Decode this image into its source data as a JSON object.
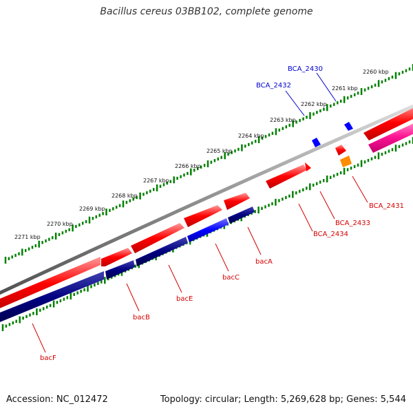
{
  "title": "Bacillus cereus 03BB102, complete genome",
  "footer": {
    "accession": "Accession: NC_012472",
    "summary": "Topology: circular; Length: 5,269,628 bp; Genes: 5,544"
  },
  "scale_labels": [
    "2260 kbp",
    "2261 kbp",
    "2262 kbp",
    "2263 kbp",
    "2264 kbp",
    "2265 kbp",
    "2266 kbp",
    "2267 kbp",
    "2268 kbp",
    "2269 kbp",
    "2270 kbp",
    "2271 kbp"
  ],
  "gene_labels": {
    "BCA_2430": "BCA_2430",
    "BCA_2432": "BCA_2432",
    "BCA_2431": "BCA_2431",
    "BCA_2433": "BCA_2433",
    "BCA_2434": "BCA_2434",
    "bacA": "bacA",
    "bacC": "bacC",
    "bacE": "bacE",
    "bacB": "bacB",
    "bacF": "bacF"
  },
  "colors": {
    "cds_forward": "#ff0000",
    "cds_reverse_dark": "#000080",
    "cds_blue": "#0000ff",
    "cds_pink": "#ff1493",
    "cds_orange": "#ff8c00",
    "backbone": "#808080",
    "scale_ticks": "#008000"
  }
}
